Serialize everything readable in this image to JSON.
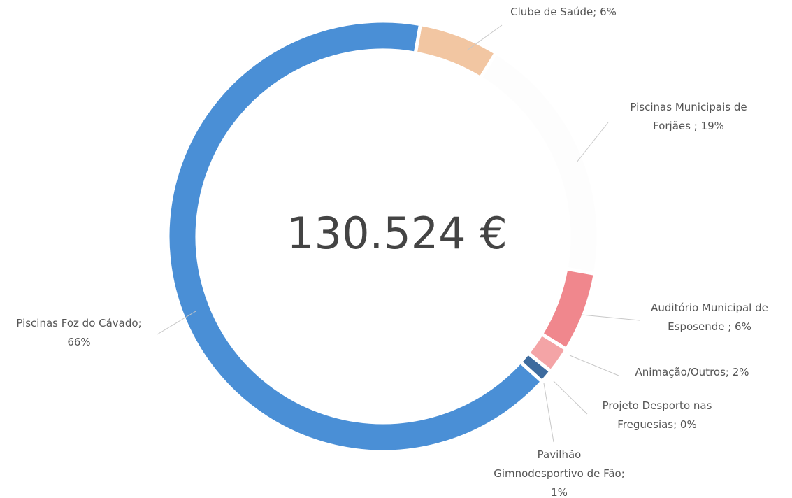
{
  "chart_data": {
    "type": "donut",
    "center_label": "130.524 €",
    "categories": [
      "Clube de Saúde",
      "Piscinas Municipais de Forjães",
      "Auditório Municipal de Esposende",
      "Animação/Outros",
      "Projeto Desporto nas Freguesias",
      "Pavilhão Gimnodesportivo de Fão",
      "Piscinas Foz do Cávado"
    ],
    "values": [
      6,
      19,
      6,
      2,
      0,
      1,
      66
    ],
    "value_labels": [
      [
        "Clube de Saúde; 6%"
      ],
      [
        "Piscinas Municipais de",
        "Forjães ; 19%"
      ],
      [
        "Auditório Municipal de",
        "Esposende ; 6%"
      ],
      [
        "Animação/Outros; 2%"
      ],
      [
        "Projeto Desporto nas",
        "Freguesias; 0%"
      ],
      [
        "Pavilhão",
        "Gimnodesportivo de Fão;",
        "1%"
      ],
      [
        "Piscinas Foz do Cávado;",
        "66%"
      ]
    ],
    "colors": [
      "#f2c6a2",
      "#fdfdfd",
      "#f0878d",
      "#f4a4a6",
      "#3f6fa6",
      "#3d6b9e",
      "#4a8fd6"
    ]
  }
}
